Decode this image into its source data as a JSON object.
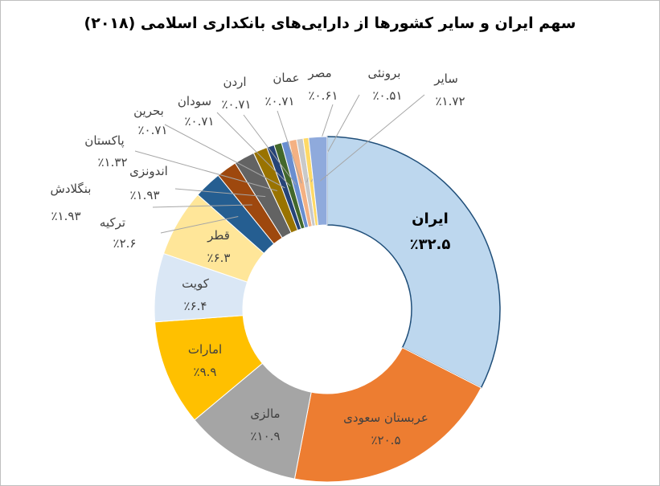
{
  "chart_data": {
    "type": "pie",
    "title": "سهم ایران و سایر کشورها از دارایی‌های بانکداری اسلامی (۲۰۱۸)",
    "value_format": "٪{v}",
    "donut": true,
    "slices": [
      {
        "label": "ایران",
        "value": 32.5,
        "display": "٪۳۲.۵",
        "color": "#bdd7ee",
        "stroke": "#1f4e79"
      },
      {
        "label": "عربستان سعودی",
        "value": 20.5,
        "display": "٪۲۰.۵",
        "color": "#ed7d31"
      },
      {
        "label": "مالزی",
        "value": 10.9,
        "display": "٪۱۰.۹",
        "color": "#a5a5a5"
      },
      {
        "label": "امارات",
        "value": 9.9,
        "display": "٪۹.۹",
        "color": "#ffc000"
      },
      {
        "label": "کویت",
        "value": 6.4,
        "display": "٪۶.۴",
        "color": "#dae7f5"
      },
      {
        "label": "قطر",
        "value": 6.3,
        "display": "٪۶.۳",
        "color": "#ffe699"
      },
      {
        "label": "ترکیه",
        "value": 2.6,
        "display": "٪۲.۶",
        "color": "#255e91"
      },
      {
        "label": "بنگلادش",
        "value": 1.93,
        "display": "٪۱.۹۳",
        "color": "#9e480e"
      },
      {
        "label": "اندونزی",
        "value": 1.93,
        "display": "٪۱.۹۳",
        "color": "#636363"
      },
      {
        "label": "پاکستان",
        "value": 1.32,
        "display": "٪۱.۳۲",
        "color": "#997300"
      },
      {
        "label": "بحرین",
        "value": 0.71,
        "display": "٪۰.۷۱",
        "color": "#264478"
      },
      {
        "label": "سودان",
        "value": 0.71,
        "display": "٪۰.۷۱",
        "color": "#43682b"
      },
      {
        "label": "اردن",
        "value": 0.71,
        "display": "٪۰.۷۱",
        "color": "#698ed0"
      },
      {
        "label": "عمان",
        "value": 0.71,
        "display": "٪۰.۷۱",
        "color": "#f4b183"
      },
      {
        "label": "مصر",
        "value": 0.61,
        "display": "٪۰.۶۱",
        "color": "#c9c9c9"
      },
      {
        "label": "برونئی",
        "value": 0.51,
        "display": "٪۰.۵۱",
        "color": "#ffd966"
      },
      {
        "label": "سایر",
        "value": 1.72,
        "display": "٪۱.۷۲",
        "color": "#8faadc"
      }
    ]
  }
}
